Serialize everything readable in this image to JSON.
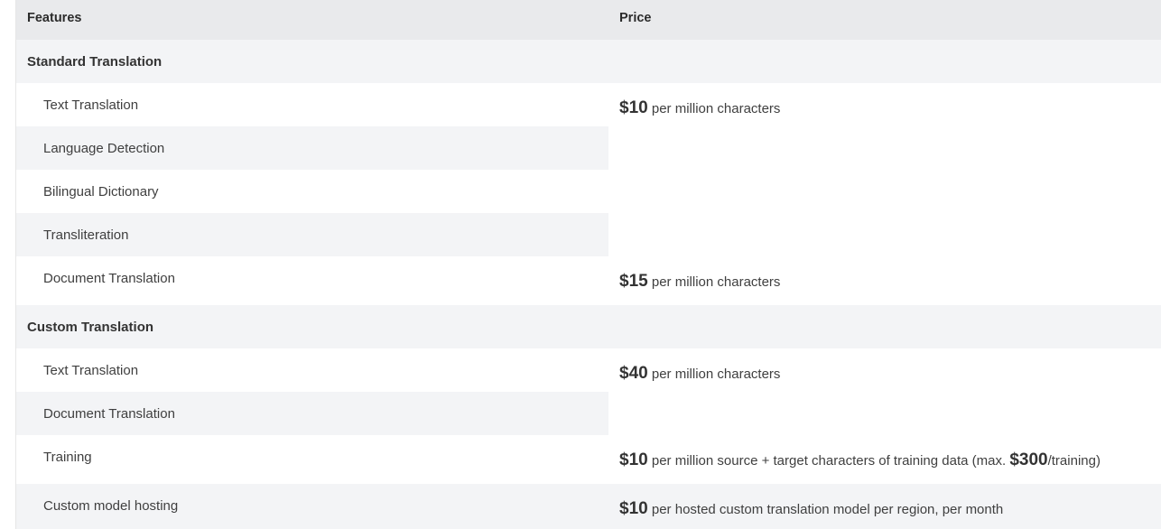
{
  "header": {
    "features": "Features",
    "price": "Price"
  },
  "groups": [
    {
      "title": "Standard Translation",
      "rows": [
        "Text Translation",
        "Language Detection",
        "Bilingual Dictionary",
        "Transliteration",
        "Document Translation"
      ],
      "prices": [
        {
          "amount": "$10",
          "text": "per million characters"
        },
        {
          "amount": "$15",
          "text": "per million characters"
        }
      ]
    },
    {
      "title": "Custom Translation",
      "rows": [
        "Text Translation",
        "Document Translation",
        "Training",
        "Custom model hosting"
      ],
      "prices": [
        {
          "amount": "$40",
          "text": "per million characters"
        },
        {
          "amount": "$10",
          "text": "per million source + target characters of training data (max.",
          "amount2": "$300",
          "text2": "/training)"
        },
        {
          "amount": "$10",
          "text": "per hosted custom translation model per region, per month"
        }
      ]
    }
  ],
  "colors": {
    "header_bg": "#e9eaec",
    "stripe_bg": "#f3f4f6",
    "text": "#3b3b3b"
  }
}
